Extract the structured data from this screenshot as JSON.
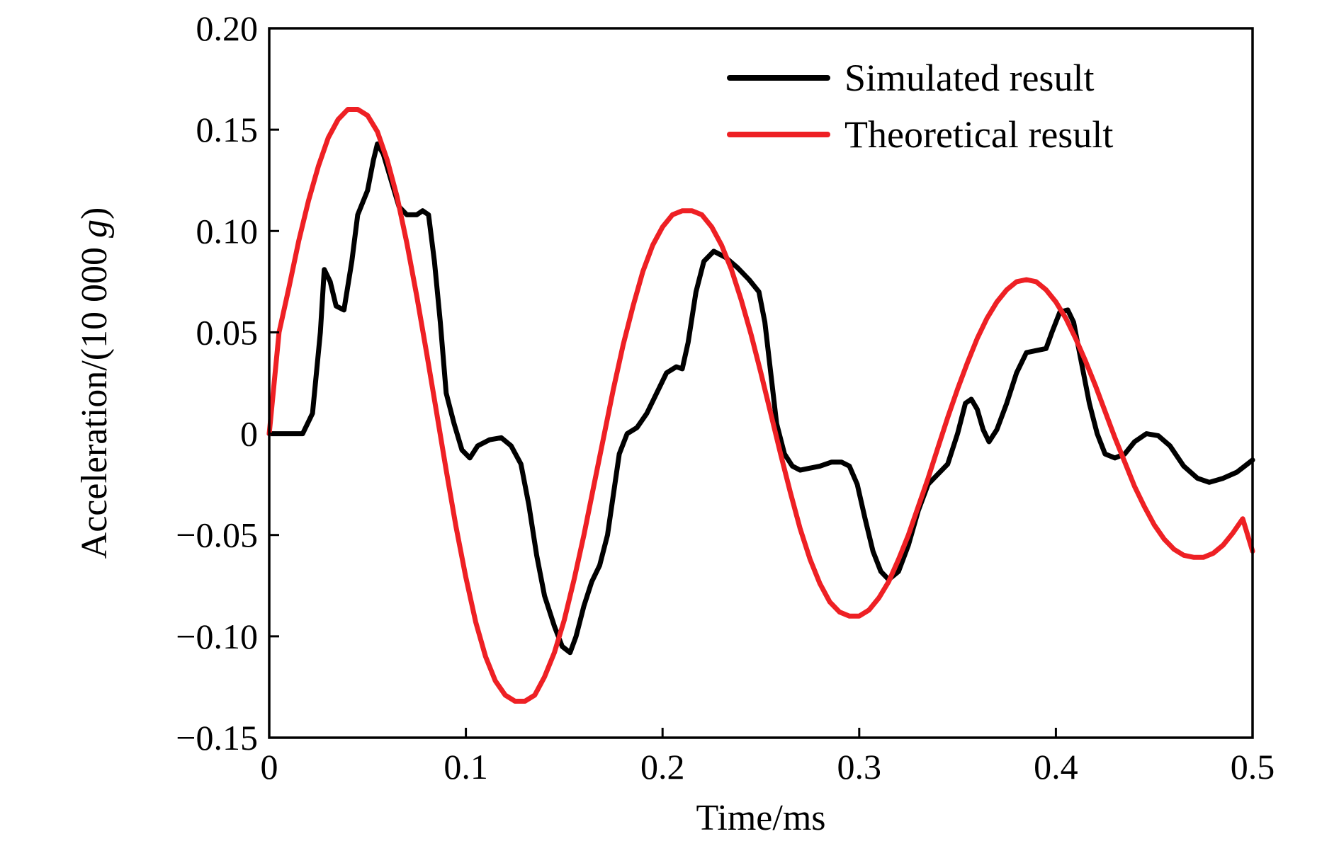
{
  "chart_data": {
    "type": "line",
    "xlabel": "Time/ms",
    "ylabel_prefix": "Acceleration/(10 000 ",
    "ylabel_italic": "g",
    "ylabel_suffix": ")",
    "xlim": [
      0,
      0.5
    ],
    "ylim": [
      -0.15,
      0.2
    ],
    "xticks": [
      0,
      0.1,
      0.2,
      0.3,
      0.4,
      0.5
    ],
    "xtick_labels": [
      "0",
      "0.1",
      "0.2",
      "0.3",
      "0.4",
      "0.5"
    ],
    "yticks": [
      -0.15,
      -0.1,
      -0.05,
      0,
      0.05,
      0.1,
      0.15,
      0.2
    ],
    "ytick_labels": [
      "−0.15",
      "−0.10",
      "−0.05",
      "0",
      "0.05",
      "0.10",
      "0.15",
      "0.20"
    ],
    "grid": false,
    "legend_position": "top-right",
    "series": [
      {
        "name": "Simulated result",
        "color": "#000000",
        "points": [
          [
            0,
            0
          ],
          [
            0.017,
            0
          ],
          [
            0.022,
            0.01
          ],
          [
            0.026,
            0.05
          ],
          [
            0.028,
            0.081
          ],
          [
            0.031,
            0.075
          ],
          [
            0.034,
            0.063
          ],
          [
            0.038,
            0.061
          ],
          [
            0.042,
            0.085
          ],
          [
            0.045,
            0.108
          ],
          [
            0.05,
            0.12
          ],
          [
            0.053,
            0.135
          ],
          [
            0.055,
            0.143
          ],
          [
            0.058,
            0.138
          ],
          [
            0.062,
            0.125
          ],
          [
            0.066,
            0.112
          ],
          [
            0.07,
            0.108
          ],
          [
            0.075,
            0.108
          ],
          [
            0.078,
            0.11
          ],
          [
            0.081,
            0.108
          ],
          [
            0.084,
            0.085
          ],
          [
            0.087,
            0.055
          ],
          [
            0.09,
            0.02
          ],
          [
            0.094,
            0.005
          ],
          [
            0.098,
            -0.008
          ],
          [
            0.102,
            -0.012
          ],
          [
            0.106,
            -0.006
          ],
          [
            0.112,
            -0.003
          ],
          [
            0.118,
            -0.002
          ],
          [
            0.123,
            -0.006
          ],
          [
            0.128,
            -0.015
          ],
          [
            0.132,
            -0.035
          ],
          [
            0.136,
            -0.06
          ],
          [
            0.14,
            -0.08
          ],
          [
            0.145,
            -0.095
          ],
          [
            0.149,
            -0.105
          ],
          [
            0.153,
            -0.108
          ],
          [
            0.156,
            -0.1
          ],
          [
            0.16,
            -0.085
          ],
          [
            0.164,
            -0.073
          ],
          [
            0.168,
            -0.065
          ],
          [
            0.172,
            -0.05
          ],
          [
            0.175,
            -0.03
          ],
          [
            0.178,
            -0.01
          ],
          [
            0.182,
            0
          ],
          [
            0.187,
            0.003
          ],
          [
            0.192,
            0.01
          ],
          [
            0.197,
            0.02
          ],
          [
            0.202,
            0.03
          ],
          [
            0.207,
            0.033
          ],
          [
            0.21,
            0.032
          ],
          [
            0.213,
            0.045
          ],
          [
            0.217,
            0.07
          ],
          [
            0.221,
            0.085
          ],
          [
            0.226,
            0.09
          ],
          [
            0.232,
            0.087
          ],
          [
            0.238,
            0.082
          ],
          [
            0.244,
            0.076
          ],
          [
            0.249,
            0.07
          ],
          [
            0.252,
            0.055
          ],
          [
            0.255,
            0.03
          ],
          [
            0.258,
            0.005
          ],
          [
            0.262,
            -0.01
          ],
          [
            0.266,
            -0.016
          ],
          [
            0.27,
            -0.018
          ],
          [
            0.275,
            -0.017
          ],
          [
            0.28,
            -0.016
          ],
          [
            0.286,
            -0.014
          ],
          [
            0.291,
            -0.014
          ],
          [
            0.295,
            -0.016
          ],
          [
            0.299,
            -0.025
          ],
          [
            0.303,
            -0.042
          ],
          [
            0.307,
            -0.058
          ],
          [
            0.311,
            -0.068
          ],
          [
            0.315,
            -0.072
          ],
          [
            0.32,
            -0.068
          ],
          [
            0.325,
            -0.055
          ],
          [
            0.33,
            -0.038
          ],
          [
            0.335,
            -0.025
          ],
          [
            0.34,
            -0.02
          ],
          [
            0.345,
            -0.015
          ],
          [
            0.35,
            0
          ],
          [
            0.354,
            0.015
          ],
          [
            0.357,
            0.017
          ],
          [
            0.36,
            0.012
          ],
          [
            0.363,
            0.002
          ],
          [
            0.366,
            -0.004
          ],
          [
            0.37,
            0.002
          ],
          [
            0.375,
            0.015
          ],
          [
            0.38,
            0.03
          ],
          [
            0.385,
            0.04
          ],
          [
            0.39,
            0.041
          ],
          [
            0.395,
            0.042
          ],
          [
            0.398,
            0.05
          ],
          [
            0.402,
            0.06
          ],
          [
            0.406,
            0.061
          ],
          [
            0.409,
            0.055
          ],
          [
            0.413,
            0.035
          ],
          [
            0.417,
            0.015
          ],
          [
            0.421,
            0
          ],
          [
            0.425,
            -0.01
          ],
          [
            0.43,
            -0.012
          ],
          [
            0.435,
            -0.01
          ],
          [
            0.44,
            -0.004
          ],
          [
            0.446,
            0
          ],
          [
            0.452,
            -0.001
          ],
          [
            0.458,
            -0.006
          ],
          [
            0.465,
            -0.016
          ],
          [
            0.472,
            -0.022
          ],
          [
            0.478,
            -0.024
          ],
          [
            0.485,
            -0.022
          ],
          [
            0.492,
            -0.019
          ],
          [
            0.5,
            -0.013
          ]
        ]
      },
      {
        "name": "Theoretical result",
        "color": "#ee2024",
        "points": [
          [
            0,
            0
          ],
          [
            0.005,
            0.05
          ],
          [
            0.01,
            0.072
          ],
          [
            0.015,
            0.095
          ],
          [
            0.02,
            0.115
          ],
          [
            0.025,
            0.132
          ],
          [
            0.03,
            0.146
          ],
          [
            0.035,
            0.155
          ],
          [
            0.04,
            0.16
          ],
          [
            0.045,
            0.16
          ],
          [
            0.05,
            0.157
          ],
          [
            0.055,
            0.149
          ],
          [
            0.06,
            0.135
          ],
          [
            0.065,
            0.117
          ],
          [
            0.07,
            0.094
          ],
          [
            0.075,
            0.068
          ],
          [
            0.08,
            0.04
          ],
          [
            0.085,
            0.011
          ],
          [
            0.09,
            -0.018
          ],
          [
            0.095,
            -0.046
          ],
          [
            0.1,
            -0.071
          ],
          [
            0.105,
            -0.093
          ],
          [
            0.11,
            -0.11
          ],
          [
            0.115,
            -0.122
          ],
          [
            0.12,
            -0.129
          ],
          [
            0.125,
            -0.132
          ],
          [
            0.13,
            -0.132
          ],
          [
            0.135,
            -0.129
          ],
          [
            0.14,
            -0.12
          ],
          [
            0.145,
            -0.108
          ],
          [
            0.15,
            -0.092
          ],
          [
            0.155,
            -0.072
          ],
          [
            0.16,
            -0.05
          ],
          [
            0.165,
            -0.026
          ],
          [
            0.17,
            -0.002
          ],
          [
            0.175,
            0.022
          ],
          [
            0.18,
            0.044
          ],
          [
            0.185,
            0.063
          ],
          [
            0.19,
            0.08
          ],
          [
            0.195,
            0.093
          ],
          [
            0.2,
            0.102
          ],
          [
            0.205,
            0.108
          ],
          [
            0.21,
            0.11
          ],
          [
            0.215,
            0.11
          ],
          [
            0.22,
            0.108
          ],
          [
            0.225,
            0.102
          ],
          [
            0.23,
            0.093
          ],
          [
            0.235,
            0.081
          ],
          [
            0.24,
            0.066
          ],
          [
            0.245,
            0.049
          ],
          [
            0.25,
            0.03
          ],
          [
            0.255,
            0.01
          ],
          [
            0.26,
            -0.01
          ],
          [
            0.265,
            -0.029
          ],
          [
            0.27,
            -0.047
          ],
          [
            0.275,
            -0.062
          ],
          [
            0.28,
            -0.074
          ],
          [
            0.285,
            -0.083
          ],
          [
            0.29,
            -0.088
          ],
          [
            0.295,
            -0.09
          ],
          [
            0.3,
            -0.09
          ],
          [
            0.305,
            -0.087
          ],
          [
            0.31,
            -0.081
          ],
          [
            0.315,
            -0.073
          ],
          [
            0.32,
            -0.062
          ],
          [
            0.325,
            -0.05
          ],
          [
            0.33,
            -0.036
          ],
          [
            0.335,
            -0.022
          ],
          [
            0.34,
            -0.007
          ],
          [
            0.345,
            0.008
          ],
          [
            0.35,
            0.022
          ],
          [
            0.355,
            0.035
          ],
          [
            0.36,
            0.047
          ],
          [
            0.365,
            0.057
          ],
          [
            0.37,
            0.065
          ],
          [
            0.375,
            0.071
          ],
          [
            0.38,
            0.075
          ],
          [
            0.385,
            0.076
          ],
          [
            0.39,
            0.075
          ],
          [
            0.395,
            0.071
          ],
          [
            0.4,
            0.065
          ],
          [
            0.405,
            0.057
          ],
          [
            0.41,
            0.047
          ],
          [
            0.415,
            0.036
          ],
          [
            0.42,
            0.024
          ],
          [
            0.425,
            0.011
          ],
          [
            0.43,
            -0.002
          ],
          [
            0.435,
            -0.014
          ],
          [
            0.44,
            -0.026
          ],
          [
            0.445,
            -0.036
          ],
          [
            0.45,
            -0.045
          ],
          [
            0.455,
            -0.052
          ],
          [
            0.46,
            -0.057
          ],
          [
            0.465,
            -0.06
          ],
          [
            0.47,
            -0.061
          ],
          [
            0.475,
            -0.061
          ],
          [
            0.48,
            -0.059
          ],
          [
            0.485,
            -0.055
          ],
          [
            0.49,
            -0.049
          ],
          [
            0.495,
            -0.042
          ],
          [
            0.5,
            -0.058
          ]
        ]
      }
    ]
  }
}
